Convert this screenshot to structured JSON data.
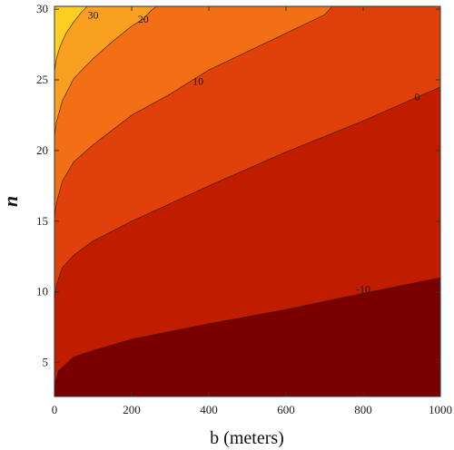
{
  "chart_data": {
    "type": "contour",
    "xlabel": "b (meters)",
    "ylabel": "n",
    "xlim": [
      0,
      1000
    ],
    "ylim": [
      2.6,
      30.2
    ],
    "x_ticks": [
      0,
      200,
      400,
      600,
      800,
      1000
    ],
    "y_ticks": [
      5,
      10,
      15,
      20,
      25,
      30
    ],
    "tick_labels_x": [
      "0",
      "200",
      "400",
      "600",
      "800",
      "1000"
    ],
    "tick_labels_y": [
      "5",
      "10",
      "15",
      "20",
      "25",
      "30"
    ],
    "region_colors": [
      "#7A0000",
      "#C01C00",
      "#E0400A",
      "#F26F16",
      "#F9A020",
      "#FCCF22"
    ],
    "contours": [
      {
        "label": "-10",
        "label_at": {
          "b": 800,
          "n": 10.2
        },
        "points": [
          [
            0,
            3.4
          ],
          [
            10,
            4.4
          ],
          [
            50,
            5.4
          ],
          [
            100,
            5.85
          ],
          [
            200,
            6.65
          ],
          [
            400,
            7.75
          ],
          [
            600,
            8.75
          ],
          [
            800,
            9.9
          ],
          [
            1000,
            11.0
          ]
        ]
      },
      {
        "label": "0",
        "label_at": {
          "b": 940,
          "n": 23.8
        },
        "points": [
          [
            0,
            9.5
          ],
          [
            5,
            10.5
          ],
          [
            20,
            11.7
          ],
          [
            50,
            12.6
          ],
          [
            100,
            13.6
          ],
          [
            200,
            15.0
          ],
          [
            400,
            17.5
          ],
          [
            600,
            19.9
          ],
          [
            800,
            22.1
          ],
          [
            1000,
            24.5
          ]
        ]
      },
      {
        "label": "10",
        "label_at": {
          "b": 372,
          "n": 24.9
        },
        "points": [
          [
            0,
            15.3
          ],
          [
            5,
            16.3
          ],
          [
            20,
            17.8
          ],
          [
            50,
            19.2
          ],
          [
            100,
            20.4
          ],
          [
            200,
            22.5
          ],
          [
            300,
            24.0
          ],
          [
            400,
            25.7
          ],
          [
            600,
            28.3
          ],
          [
            700,
            29.6
          ],
          [
            720,
            30.2
          ]
        ]
      },
      {
        "label": "20",
        "label_at": {
          "b": 230,
          "n": 29.3
        },
        "points": [
          [
            0,
            21.0
          ],
          [
            5,
            22.0
          ],
          [
            20,
            23.5
          ],
          [
            50,
            25.1
          ],
          [
            100,
            26.5
          ],
          [
            150,
            27.7
          ],
          [
            200,
            28.8
          ],
          [
            230,
            29.3
          ],
          [
            250,
            29.9
          ],
          [
            265,
            30.2
          ]
        ]
      },
      {
        "label": "30",
        "label_at": {
          "b": 100,
          "n": 29.6
        },
        "points": [
          [
            0,
            25.6
          ],
          [
            5,
            26.5
          ],
          [
            15,
            27.4
          ],
          [
            30,
            28.3
          ],
          [
            50,
            29.1
          ],
          [
            70,
            29.8
          ],
          [
            85,
            30.2
          ]
        ]
      }
    ]
  }
}
